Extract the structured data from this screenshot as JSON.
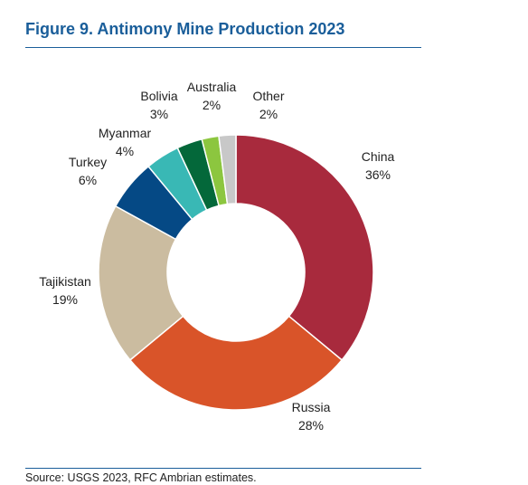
{
  "figure": {
    "title": "Figure 9. Antimony Mine Production 2023",
    "source": "Source: USGS 2023, RFC Ambrian estimates."
  },
  "chart_data": {
    "type": "pie",
    "style": "donut",
    "title": "Figure 9. Antimony Mine Production 2023",
    "unit": "%",
    "legend": "none",
    "slices": [
      {
        "label": "China",
        "value": 36,
        "display": "36%",
        "color": "#a82a3d"
      },
      {
        "label": "Russia",
        "value": 28,
        "display": "28%",
        "color": "#d95429"
      },
      {
        "label": "Tajikistan",
        "value": 19,
        "display": "19%",
        "color": "#cbbca0"
      },
      {
        "label": "Turkey",
        "value": 6,
        "display": "6%",
        "color": "#054985"
      },
      {
        "label": "Myanmar",
        "value": 4,
        "display": "4%",
        "color": "#39b8b5"
      },
      {
        "label": "Bolivia",
        "value": 3,
        "display": "3%",
        "color": "#04683a"
      },
      {
        "label": "Australia",
        "value": 2,
        "display": "2%",
        "color": "#8cc63f"
      },
      {
        "label": "Other",
        "value": 2,
        "display": "2%",
        "color": "#c8c8c8"
      }
    ]
  }
}
